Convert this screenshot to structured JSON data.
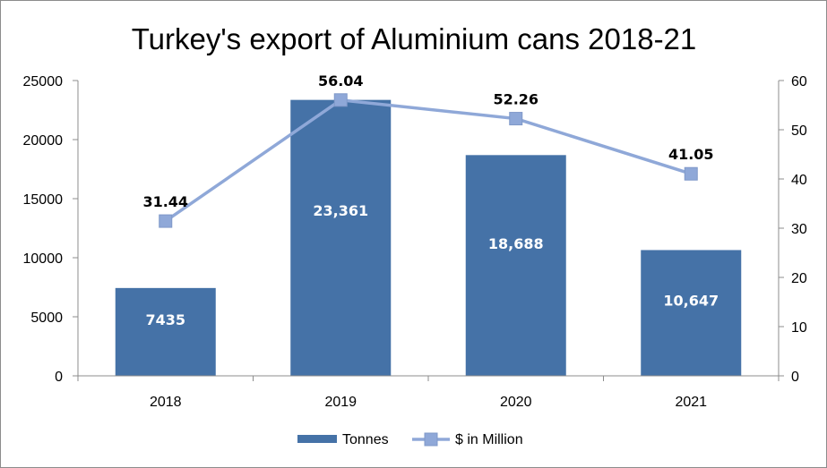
{
  "chart_data": {
    "type": "bar",
    "title": "Turkey's export of Aluminium cans 2018-21",
    "categories": [
      "2018",
      "2019",
      "2020",
      "2021"
    ],
    "series": [
      {
        "name": "Tonnes",
        "type": "bar",
        "axis": "left",
        "values": [
          7435,
          23361,
          18688,
          10647
        ],
        "labels": [
          "7435",
          "23,361",
          "18,688",
          "10,647"
        ],
        "color": "#4572a7"
      },
      {
        "name": "$ in Million",
        "type": "line",
        "axis": "right",
        "values": [
          31.44,
          56.04,
          52.26,
          41.05
        ],
        "labels": [
          "31.44",
          "56.04",
          "52.26",
          "41.05"
        ],
        "color": "#8fa8d8"
      }
    ],
    "y_left": {
      "min": 0,
      "max": 25000,
      "ticks": [
        0,
        5000,
        10000,
        15000,
        20000,
        25000
      ]
    },
    "y_right": {
      "min": 0,
      "max": 60,
      "ticks": [
        0,
        10,
        20,
        30,
        40,
        50,
        60
      ]
    },
    "grid": false,
    "legend": "bottom"
  }
}
